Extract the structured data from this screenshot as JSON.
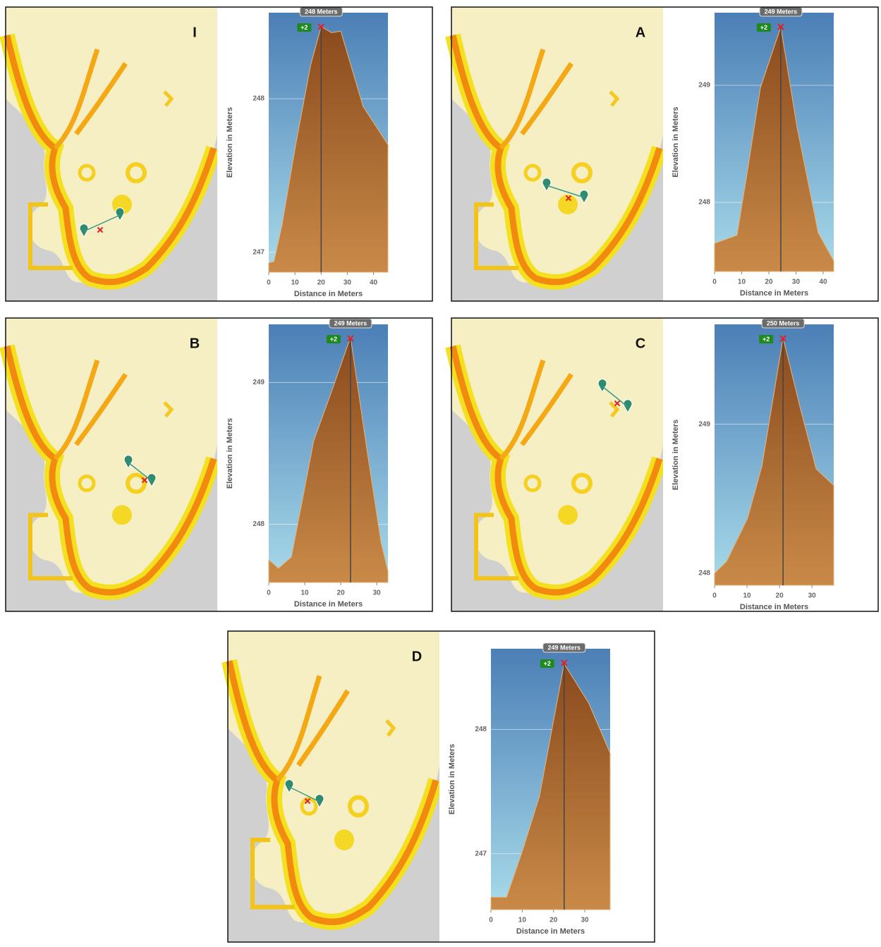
{
  "chart_data": [
    {
      "type": "area",
      "panel": "I",
      "x_label": "Distance in Meters",
      "y_label": "Elevation in Meters",
      "marker_label": "248 Meters",
      "badge": "+2",
      "marker_x": 20,
      "x": [
        0,
        2,
        5,
        10.5,
        16,
        20,
        24,
        27.5,
        36,
        45.5
      ],
      "values": [
        246.93,
        246.94,
        247.17,
        247.72,
        248.22,
        248.47,
        248.43,
        248.44,
        247.95,
        247.7
      ],
      "xlim": [
        0,
        45.5
      ],
      "ylim": [
        246.87,
        248.56
      ],
      "xticks": [
        0,
        10,
        20,
        30,
        40
      ],
      "yticks": [
        247,
        248
      ],
      "color": "#a0582a"
    },
    {
      "type": "area",
      "panel": "A",
      "x_label": "Distance in Meters",
      "y_label": "Elevation in Meters",
      "marker_label": "249 Meters",
      "badge": "+2",
      "marker_x": 24.4,
      "x": [
        0,
        8.3,
        12.2,
        16.9,
        24.4,
        30.4,
        38.2,
        43.9
      ],
      "values": [
        247.65,
        247.72,
        248.28,
        248.98,
        249.5,
        248.64,
        247.74,
        247.5
      ],
      "xlim": [
        0,
        43.9
      ],
      "ylim": [
        247.41,
        249.62
      ],
      "xticks": [
        0,
        10,
        20,
        30,
        40
      ],
      "yticks": [
        248,
        249
      ],
      "color": "#a0582a"
    },
    {
      "type": "area",
      "panel": "B",
      "x_label": "Distance in Meters",
      "y_label": "Elevation in Meters",
      "marker_label": "249 Meters",
      "badge": "+2",
      "marker_x": 22.7,
      "x": [
        0,
        2.7,
        6.3,
        12.5,
        17.5,
        22.7,
        27.3,
        31.2,
        33.1
      ],
      "values": [
        247.75,
        247.69,
        247.77,
        248.59,
        248.94,
        249.32,
        248.52,
        247.87,
        247.67
      ],
      "xlim": [
        0,
        33.1
      ],
      "ylim": [
        247.59,
        249.41
      ],
      "xticks": [
        0,
        10,
        20,
        30
      ],
      "yticks": [
        248,
        249
      ],
      "color": "#a0582a"
    },
    {
      "type": "area",
      "panel": "C",
      "x_label": "Distance in Meters",
      "y_label": "Elevation in Meters",
      "marker_label": "250 Meters",
      "badge": "+2",
      "marker_x": 21.1,
      "x": [
        0,
        3.7,
        10.2,
        14.6,
        21.1,
        26.5,
        31.3,
        36.7
      ],
      "values": [
        248.0,
        248.08,
        248.37,
        248.72,
        249.58,
        249.1,
        248.7,
        248.59
      ],
      "xlim": [
        0,
        36.7
      ],
      "ylim": [
        247.92,
        249.67
      ],
      "xticks": [
        0,
        10,
        20,
        30
      ],
      "yticks": [
        248,
        249
      ],
      "color": "#a0582a"
    },
    {
      "type": "area",
      "panel": "D",
      "x_label": "Distance in Meters",
      "y_label": "Elevation in Meters",
      "marker_label": "249 Meters",
      "badge": "+2",
      "marker_x": 23.4,
      "x": [
        0,
        5,
        9.9,
        15.5,
        23.4,
        31.3,
        38.1
      ],
      "values": [
        246.65,
        246.65,
        247.01,
        247.46,
        248.53,
        248.21,
        247.81
      ],
      "xlim": [
        0,
        38.1
      ],
      "ylim": [
        246.55,
        248.65
      ],
      "xticks": [
        0,
        10,
        20,
        30
      ],
      "yticks": [
        247,
        248
      ],
      "color": "#a0582a"
    }
  ]
}
